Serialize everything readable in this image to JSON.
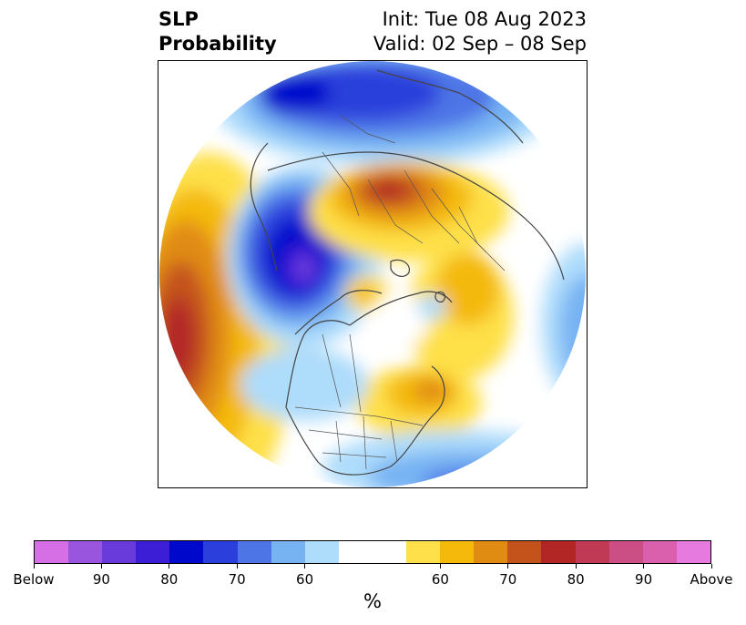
{
  "title": {
    "variable": "SLP",
    "quantity": "Probability",
    "init": "Init: Tue 08 Aug 2023",
    "valid": "Valid: 02 Sep – 08 Sep"
  },
  "map": {
    "projection": "north-polar-stereographic",
    "features": [
      "coastlines",
      "country-borders",
      "us-state-borders"
    ]
  },
  "colorbar": {
    "unit": "%",
    "colors": [
      "#d66ee6",
      "#9a55de",
      "#6a3bdb",
      "#3c1ed6",
      "#0008cc",
      "#2a3fdb",
      "#4d75e6",
      "#77b3f3",
      "#aedcfb",
      "#ffffff",
      "#ffffff",
      "#fee04a",
      "#f4b90a",
      "#e08b12",
      "#c4531b",
      "#b22626",
      "#c03a55",
      "#cb4f84",
      "#da60ae",
      "#e67ade"
    ],
    "tick_labels": [
      "Below",
      "90",
      "80",
      "70",
      "60",
      "60",
      "70",
      "80",
      "90",
      "Above"
    ]
  }
}
